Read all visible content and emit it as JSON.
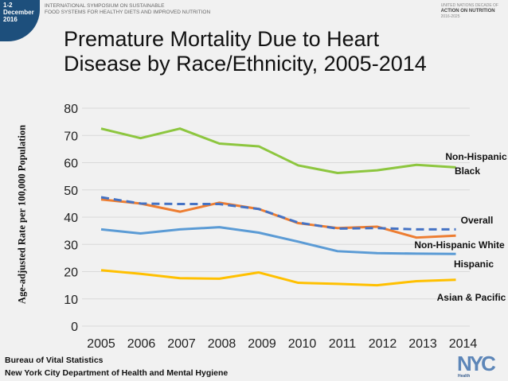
{
  "header": {
    "date_badge": [
      "1-2",
      "December",
      "2016"
    ],
    "symposium": [
      "INTERNATIONAL SYMPOSIUM ON SUSTAINABLE",
      "FOOD SYSTEMS FOR HEALTHY DIETS AND IMPROVED NUTRITION"
    ],
    "un_logo": [
      "UNITED NATIONS DECADE OF",
      "ACTION ON NUTRITION",
      "2016-2025"
    ]
  },
  "footer": {
    "line1": "Bureau of Vital Statistics",
    "line2": "New York City Department of Health and Mental Hygiene",
    "logo": "NYC",
    "logo_sub": "Health"
  },
  "chart_data": {
    "type": "line",
    "title": "Premature Mortality Due to Heart Disease by Race/Ethnicity, 2005-2014",
    "xlabel": "",
    "ylabel": "Age-adjusted Rate per 100,000 Population",
    "ylim": [
      0,
      80
    ],
    "yticks": [
      0,
      10,
      20,
      30,
      40,
      50,
      60,
      70,
      80
    ],
    "grid": true,
    "x": [
      2005,
      2006,
      2007,
      2008,
      2009,
      2010,
      2011,
      2012,
      2013,
      2014
    ],
    "series": [
      {
        "name": "Non-Hispanic Black",
        "color": "#8dc63f",
        "dashed": false,
        "values": [
          72.5,
          69,
          72.5,
          67,
          66,
          59,
          56.2,
          57.2,
          59.2,
          58.3
        ]
      },
      {
        "name": "Overall",
        "color": "#4472c4",
        "dashed": true,
        "values": [
          47.3,
          45,
          44.8,
          44.8,
          43,
          38,
          35.8,
          36,
          35.5,
          35.5
        ]
      },
      {
        "name": "Non-Hispanic White",
        "color": "#ed7d31",
        "dashed": false,
        "values": [
          46.5,
          45,
          42,
          45.3,
          43,
          37.8,
          36,
          36.5,
          32.5,
          33.2
        ]
      },
      {
        "name": "Hispanic",
        "color": "#5b9bd5",
        "dashed": false,
        "values": [
          35.5,
          34,
          35.5,
          36.3,
          34.3,
          31,
          27.5,
          26.8,
          26.6,
          26.5
        ]
      },
      {
        "name": "Asian & Pacific Islander",
        "color": "#ffc000",
        "dashed": false,
        "values": [
          20.5,
          19.2,
          17.6,
          17.4,
          19.7,
          15.9,
          15.5,
          15,
          16.5,
          17
        ]
      }
    ]
  }
}
